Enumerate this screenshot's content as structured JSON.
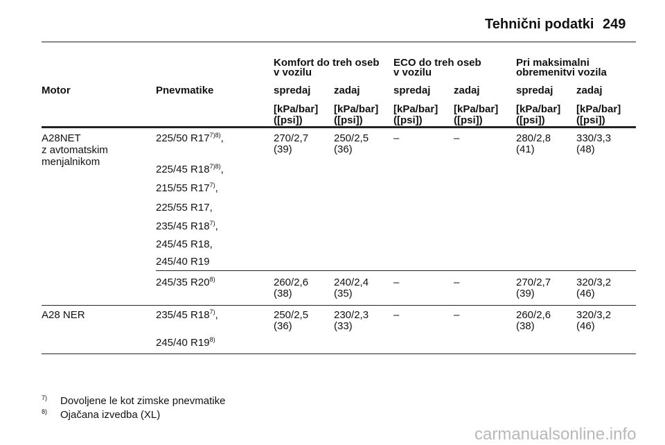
{
  "header": {
    "title": "Tehnični podatki",
    "page": "249"
  },
  "table": {
    "group_headers": [
      {
        "line1": "Komfort do treh oseb",
        "line2": "v vozilu"
      },
      {
        "line1": "ECO do treh oseb",
        "line2": "v vozilu"
      },
      {
        "line1": "Pri maksimalni",
        "line2": "obremenitvi vozila"
      }
    ],
    "columns": [
      "Motor",
      "Pnevmatike",
      "spredaj",
      "zadaj",
      "spredaj",
      "zadaj",
      "spredaj",
      "zadaj"
    ],
    "units": [
      [
        "[kPa/bar]",
        "([psi])"
      ],
      [
        "[kPa/bar]",
        "([psi])"
      ],
      [
        "[kPa/bar]",
        "([psi])"
      ],
      [
        "[kPa/bar]",
        "([psi])"
      ],
      [
        "[kPa/bar]",
        "([psi])"
      ],
      [
        "[kPa/bar]",
        "([psi])"
      ]
    ],
    "rows": [
      {
        "motor": [
          "A28NET",
          "z avtomatskim",
          "menjalnikom"
        ],
        "groups": [
          {
            "tires": [
              {
                "size": "225/50 R17",
                "note": "7)8)",
                "after": ","
              },
              {
                "size": "225/45 R18",
                "note": "7)8)",
                "after": ","
              },
              {
                "size": "215/55 R17",
                "note": "7)",
                "after": ","
              },
              {
                "size": "225/55 R17,"
              },
              {
                "size": "235/45 R18",
                "note": "7)",
                "after": ","
              },
              {
                "size": "245/45 R18,"
              },
              {
                "size": "245/40 R19"
              }
            ],
            "values": [
              [
                "270/2,7",
                "(39)"
              ],
              [
                "250/2,5",
                "(36)"
              ],
              [
                "–"
              ],
              [
                "–"
              ],
              [
                "280/2,8",
                "(41)"
              ],
              [
                "330/3,3",
                "(48)"
              ]
            ]
          },
          {
            "tires": [
              {
                "size": "245/35 R20",
                "note": "8)"
              }
            ],
            "values": [
              [
                "260/2,6",
                "(38)"
              ],
              [
                "240/2,4",
                "(35)"
              ],
              [
                "–"
              ],
              [
                "–"
              ],
              [
                "270/2,7",
                "(39)"
              ],
              [
                "320/3,2",
                "(46)"
              ]
            ]
          }
        ]
      },
      {
        "motor": [
          "A28 NER"
        ],
        "groups": [
          {
            "tires": [
              {
                "size": "235/45 R18",
                "note": "7)",
                "after": ","
              },
              {
                "size": "245/40 R19",
                "note": "8)"
              }
            ],
            "values": [
              [
                "250/2,5",
                "(36)"
              ],
              [
                "230/2,3",
                "(33)"
              ],
              [
                "–"
              ],
              [
                "–"
              ],
              [
                "260/2,6",
                "(38)"
              ],
              [
                "320/3,2",
                "(46)"
              ]
            ]
          }
        ]
      }
    ]
  },
  "footnotes": [
    {
      "mark": "7)",
      "text": "Dovoljene le kot zimske pnevmatike"
    },
    {
      "mark": "8)",
      "text": "Ojačana izvedba (XL)"
    }
  ],
  "watermark": "carmanualsonline.info"
}
